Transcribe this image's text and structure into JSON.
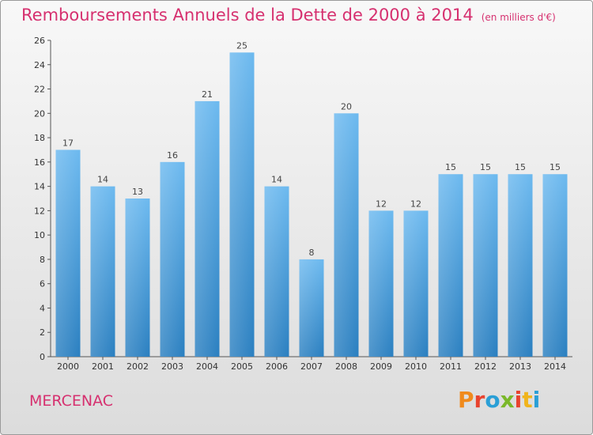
{
  "title": "Remboursements Annuels de la Dette de 2000 à 2014",
  "unit": "(en milliers d'€)",
  "commune": "MERCENAC",
  "brand": {
    "letters": [
      "P",
      "r",
      "o",
      "x",
      "i",
      "t",
      "i"
    ],
    "colors": [
      "#f08a1c",
      "#e8432e",
      "#2a9fd6",
      "#7ab829",
      "#e8432e",
      "#f0b41c",
      "#2a9fd6"
    ]
  },
  "colors": {
    "bar_top": "#6cb9ef",
    "bar_bottom": "#2a7fc0",
    "title": "#d6306f"
  },
  "chart_data": {
    "type": "bar",
    "title": "Remboursements Annuels de la Dette de 2000 à 2014",
    "categories": [
      "2000",
      "2001",
      "2002",
      "2003",
      "2004",
      "2005",
      "2006",
      "2007",
      "2008",
      "2009",
      "2010",
      "2011",
      "2012",
      "2013",
      "2014"
    ],
    "values": [
      17,
      14,
      13,
      16,
      21,
      25,
      14,
      8,
      20,
      12,
      12,
      15,
      15,
      15,
      15
    ],
    "ylim": [
      0,
      26
    ],
    "yticks": [
      0,
      2,
      4,
      6,
      8,
      10,
      12,
      14,
      16,
      18,
      20,
      22,
      24,
      26
    ],
    "grid": false,
    "legend": "none"
  }
}
